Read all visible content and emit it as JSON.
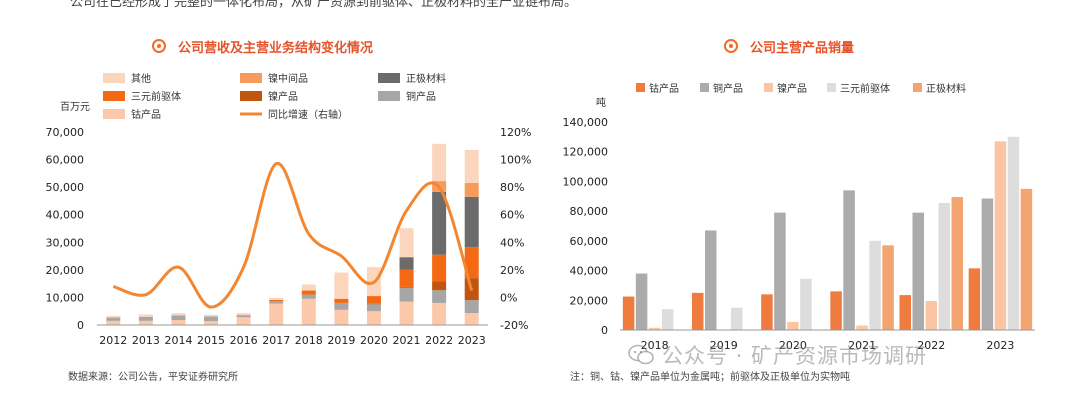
{
  "header_strip_text": "公司在已经形成了完整的一体化布局，从矿产资源到前驱体、正极材料的全产业链布局。",
  "colors": {
    "other": "#fcd5bd",
    "nickel_intermediate": "#f79b5a",
    "cathode": "#6b6b6b",
    "precursor": "#f46a14",
    "nickel_product": "#c05510",
    "copper_product": "#a6a6a6",
    "cobalt_product": "#fbc9aa",
    "yoy_line": "#f38630",
    "title": "#e5542a"
  },
  "left": {
    "title": "公司营收及主营业务结构变化情况",
    "source": "数据来源：公司公告，平安证券研究所"
  },
  "right": {
    "title": "公司主营产品销量",
    "source": "注：铜、钴、镍产品单位为金属吨；前驱体及正极单位为实物吨"
  },
  "watermark": "公众号 · 矿产资源市场调研",
  "chart_data": [
    {
      "type": "bar",
      "stacked": true,
      "title": "公司营收及主营业务结构变化情况",
      "ylabel": "百万元",
      "ylim": [
        0,
        70000
      ],
      "yticks": [
        "0",
        "10,000",
        "20,000",
        "30,000",
        "40,000",
        "50,000",
        "60,000",
        "70,000"
      ],
      "y2lim": [
        -20,
        120
      ],
      "y2ticks": [
        "-20%",
        "0%",
        "20%",
        "40%",
        "60%",
        "80%",
        "100%",
        "120%"
      ],
      "categories": [
        "2012",
        "2013",
        "2014",
        "2015",
        "2016",
        "2017",
        "2018",
        "2019",
        "2020",
        "2021",
        "2022",
        "2023"
      ],
      "series": [
        {
          "name": "钴产品",
          "color_key": "cobalt_product",
          "values": [
            1500,
            1500,
            1800,
            1400,
            2800,
            7800,
            9500,
            5500,
            5000,
            8500,
            8000,
            4300
          ]
        },
        {
          "name": "铜产品",
          "color_key": "copper_product",
          "values": [
            1200,
            1500,
            1700,
            1700,
            800,
            800,
            1500,
            2500,
            2500,
            5000,
            4600,
            4700
          ]
        },
        {
          "name": "镍产品",
          "color_key": "nickel_product",
          "values": [
            0,
            0,
            0,
            0,
            0,
            0,
            0,
            0,
            200,
            300,
            3200,
            8000
          ]
        },
        {
          "name": "三元前驱体",
          "color_key": "precursor",
          "values": [
            0,
            0,
            0,
            0,
            0,
            500,
            1500,
            1500,
            2800,
            6200,
            9700,
            11200
          ]
        },
        {
          "name": "正极材料",
          "color_key": "cathode",
          "values": [
            0,
            0,
            0,
            0,
            0,
            0,
            0,
            0,
            0,
            4600,
            22800,
            18300
          ]
        },
        {
          "name": "镍中间品",
          "color_key": "nickel_intermediate",
          "values": [
            0,
            0,
            0,
            0,
            0,
            0,
            0,
            0,
            0,
            0,
            3900,
            5000
          ]
        },
        {
          "name": "其他",
          "color_key": "other",
          "values": [
            600,
            800,
            800,
            600,
            700,
            800,
            2200,
            9500,
            10500,
            10500,
            13500,
            12000
          ]
        }
      ],
      "line_series": {
        "name": "同比增速（右轴）",
        "color_key": "yoy_line",
        "axis": "right",
        "values": [
          8,
          2,
          22,
          -7,
          22,
          97,
          46,
          30,
          11,
          63,
          80,
          5
        ]
      },
      "legend": {
        "position": "top-left",
        "order": [
          "其他",
          "镍中间品",
          "正极材料",
          "三元前驱体",
          "镍产品",
          "铜产品",
          "钴产品",
          "同比增速（右轴）"
        ]
      }
    },
    {
      "type": "bar",
      "stacked": false,
      "title": "公司主营产品销量",
      "ylabel": "吨",
      "ylim": [
        0,
        140000
      ],
      "yticks": [
        "0",
        "20,000",
        "40,000",
        "60,000",
        "80,000",
        "100,000",
        "120,000",
        "140,000"
      ],
      "categories": [
        "2018",
        "2019",
        "2020",
        "2021",
        "2022",
        "2023"
      ],
      "series": [
        {
          "name": "钴产品",
          "color": "#f07b3f",
          "values": [
            22500,
            25000,
            24000,
            26000,
            23500,
            41500
          ]
        },
        {
          "name": "铜产品",
          "color": "#ababab",
          "values": [
            38000,
            67000,
            79000,
            94000,
            79000,
            88500
          ]
        },
        {
          "name": "镍产品",
          "color": "#fbc5a3",
          "values": [
            1500,
            0,
            5500,
            3000,
            19500,
            127000
          ]
        },
        {
          "name": "三元前驱体",
          "color": "#dddddd",
          "values": [
            14000,
            15000,
            34500,
            60000,
            85500,
            130000
          ]
        },
        {
          "name": "正极材料",
          "color": "#f4a470",
          "values": [
            0,
            0,
            0,
            57000,
            89500,
            95000
          ]
        }
      ],
      "legend": {
        "position": "top",
        "order": [
          "钴产品",
          "铜产品",
          "镍产品",
          "三元前驱体",
          "正极材料"
        ]
      }
    }
  ]
}
